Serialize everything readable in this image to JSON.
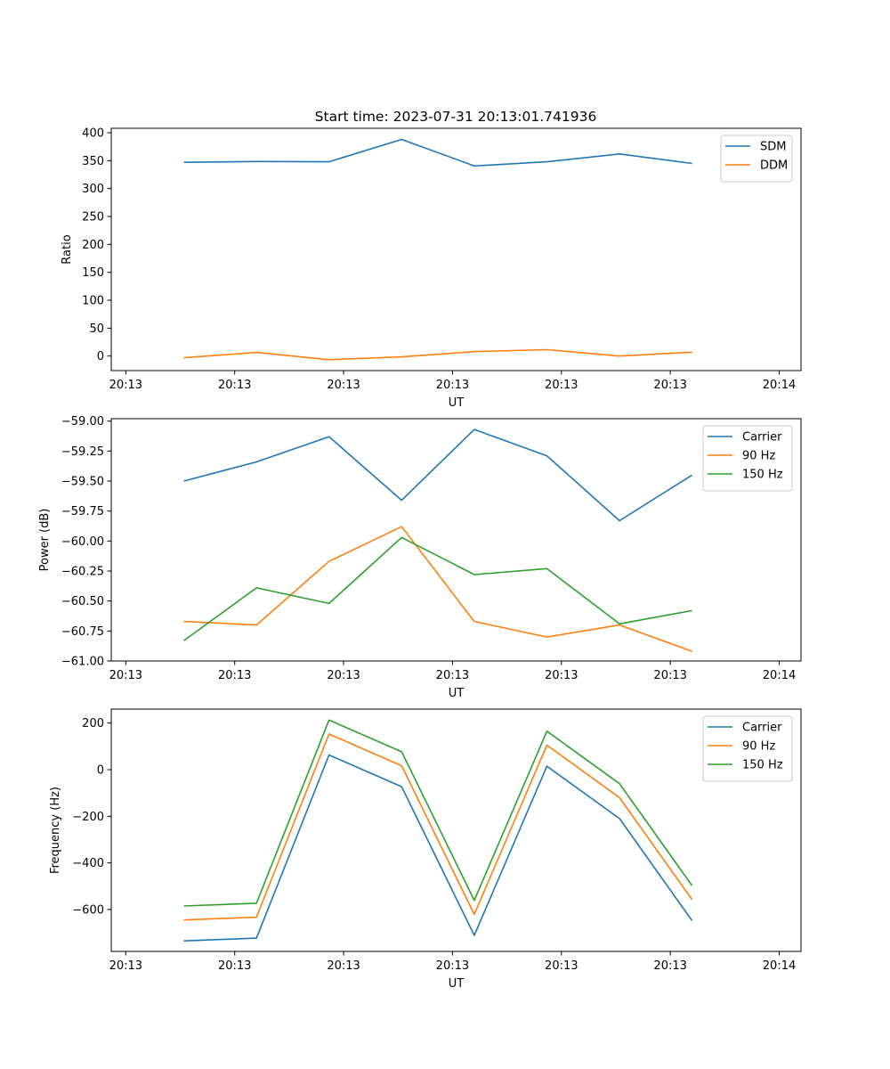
{
  "figure_title": "Start time: 2023-07-31 20:13:01.741936",
  "chart_data": [
    {
      "type": "line",
      "title": "Start time: 2023-07-31 20:13:01.741936",
      "xlabel": "UT",
      "ylabel": "Ratio",
      "legend_position": "top-right",
      "grid": false,
      "x": [
        0.5,
        1,
        1.5,
        2,
        2.5,
        3,
        3.5,
        4
      ],
      "xlim": [
        0,
        4.75
      ],
      "xticks": [
        0.1,
        0.85,
        1.6,
        2.35,
        3.1,
        3.85,
        4.6
      ],
      "xtick_labels": [
        "20:13",
        "20:13",
        "20:13",
        "20:13",
        "20:13",
        "20:13",
        "20:14"
      ],
      "ylim": [
        -26,
        408
      ],
      "yticks": [
        0,
        50,
        100,
        150,
        200,
        250,
        300,
        350,
        400
      ],
      "ytick_labels": [
        "0",
        "50",
        "100",
        "150",
        "200",
        "250",
        "300",
        "350",
        "400"
      ],
      "series": [
        {
          "name": "SDM",
          "color": "#1f77b4",
          "values": [
            347,
            348.5,
            348,
            388,
            340.5,
            348,
            362,
            345
          ]
        },
        {
          "name": "DDM",
          "color": "#ff7f0e",
          "values": [
            -3,
            6.5,
            -6.5,
            -1.5,
            8,
            11.5,
            0,
            7
          ]
        }
      ]
    },
    {
      "type": "line",
      "title": "",
      "xlabel": "UT",
      "ylabel": "Power (dB)",
      "legend_position": "top-right",
      "grid": false,
      "x": [
        0.5,
        1,
        1.5,
        2,
        2.5,
        3,
        3.5,
        4
      ],
      "xlim": [
        0,
        4.75
      ],
      "xticks": [
        0.1,
        0.85,
        1.6,
        2.35,
        3.1,
        3.85,
        4.6
      ],
      "xtick_labels": [
        "20:13",
        "20:13",
        "20:13",
        "20:13",
        "20:13",
        "20:13",
        "20:14"
      ],
      "ylim": [
        -61.0,
        -58.98
      ],
      "yticks": [
        -61.0,
        -60.75,
        -60.5,
        -60.25,
        -60.0,
        -59.75,
        -59.5,
        -59.25,
        -59.0
      ],
      "ytick_labels": [
        "−61.00",
        "−60.75",
        "−60.50",
        "−60.25",
        "−60.00",
        "−59.75",
        "−59.50",
        "−59.25",
        "−59.00"
      ],
      "series": [
        {
          "name": "Carrier",
          "color": "#1f77b4",
          "values": [
            -59.5,
            -59.34,
            -59.13,
            -59.66,
            -59.07,
            -59.29,
            -59.83,
            -59.45
          ]
        },
        {
          "name": "90 Hz",
          "color": "#ff7f0e",
          "values": [
            -60.67,
            -60.7,
            -60.17,
            -59.88,
            -60.67,
            -60.8,
            -60.7,
            -60.92
          ]
        },
        {
          "name": "150 Hz",
          "color": "#2ca02c",
          "values": [
            -60.83,
            -60.39,
            -60.52,
            -59.97,
            -60.28,
            -60.23,
            -60.69,
            -60.58
          ]
        }
      ]
    },
    {
      "type": "line",
      "title": "",
      "xlabel": "UT",
      "ylabel": "Frequency (Hz)",
      "legend_position": "top-right",
      "grid": false,
      "x": [
        0.5,
        1,
        1.5,
        2,
        2.5,
        3,
        3.5,
        4
      ],
      "xlim": [
        0,
        4.75
      ],
      "xticks": [
        0.1,
        0.85,
        1.6,
        2.35,
        3.1,
        3.85,
        4.6
      ],
      "xtick_labels": [
        "20:13",
        "20:13",
        "20:13",
        "20:13",
        "20:13",
        "20:13",
        "20:14"
      ],
      "ylim": [
        -780,
        260
      ],
      "yticks": [
        -600,
        -400,
        -200,
        0,
        200
      ],
      "ytick_labels": [
        "−600",
        "−400",
        "−200",
        "0",
        "200"
      ],
      "series": [
        {
          "name": "Carrier",
          "color": "#1f77b4",
          "values": [
            -735,
            -723,
            63,
            -73,
            -711,
            15,
            -210,
            -648
          ]
        },
        {
          "name": "90 Hz",
          "color": "#ff7f0e",
          "values": [
            -645,
            -633,
            153,
            17,
            -621,
            105,
            -120,
            -558
          ]
        },
        {
          "name": "150 Hz",
          "color": "#2ca02c",
          "values": [
            -585,
            -573,
            213,
            77,
            -561,
            165,
            -60,
            -498
          ]
        }
      ]
    }
  ]
}
